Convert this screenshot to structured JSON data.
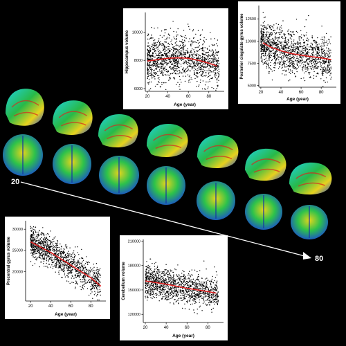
{
  "age_axis": {
    "start_label": "20",
    "end_label": "80"
  },
  "chart_data": [
    {
      "type": "scatter",
      "id": "hippocampus",
      "xlabel": "Age (year)",
      "ylabel": "Hippocampus volume",
      "xlim": [
        18,
        95
      ],
      "ylim": [
        5800,
        11400
      ],
      "xticks": [
        20,
        40,
        60,
        80
      ],
      "yticks": [
        6000,
        8000,
        10000
      ],
      "point_color": "#000000",
      "fit_color": "#e02020",
      "fit": {
        "x": [
          20,
          30,
          40,
          50,
          60,
          70,
          80,
          88
        ],
        "y": [
          7950,
          8050,
          8150,
          8180,
          8150,
          8000,
          7800,
          7600
        ]
      },
      "cloud": {
        "center": 8050,
        "spread": 1350,
        "n": 1400
      }
    },
    {
      "type": "scatter",
      "id": "posterior-cingulate",
      "xlabel": "Age (year)",
      "ylabel": "Posterior cingulate gyrus volume",
      "xlim": [
        18,
        95
      ],
      "ylim": [
        4800,
        14000
      ],
      "xticks": [
        20,
        40,
        60,
        80
      ],
      "yticks": [
        5000,
        7500,
        10000,
        12500
      ],
      "point_color": "#000000",
      "fit_color": "#e02020",
      "fit": {
        "x": [
          22,
          30,
          40,
          50,
          60,
          70,
          80,
          90
        ],
        "y": [
          9800,
          9300,
          8900,
          8600,
          8400,
          8250,
          8100,
          7900
        ]
      },
      "cloud": {
        "center": 8700,
        "spread": 2000,
        "n": 1400
      }
    },
    {
      "type": "scatter",
      "id": "precentral",
      "xlabel": "Age (year)",
      "ylabel": "Precentral gyrus volume",
      "xlim": [
        15,
        95
      ],
      "ylim": [
        13000,
        32000
      ],
      "xticks": [
        20,
        40,
        60,
        80
      ],
      "yticks": [
        20000,
        25000,
        30000
      ],
      "point_color": "#000000",
      "fit_color": "#e02020",
      "fit": {
        "x": [
          20,
          40,
          60,
          80,
          90
        ],
        "y": [
          27000,
          24500,
          21500,
          18500,
          16500
        ]
      },
      "cloud": {
        "center": 22000,
        "spread": 3000,
        "n": 1300
      }
    },
    {
      "type": "scatter",
      "id": "cerebellum",
      "xlabel": "Age (year)",
      "ylabel": "Cerebellum volume",
      "xlim": [
        18,
        95
      ],
      "ylim": [
        110000,
        212000
      ],
      "xticks": [
        20,
        40,
        60,
        80
      ],
      "yticks": [
        120000,
        150000,
        180000,
        210000
      ],
      "point_color": "#000000",
      "fit_color": "#e02020",
      "fit": {
        "x": [
          20,
          40,
          60,
          80,
          88
        ],
        "y": [
          161000,
          157000,
          152000,
          148000,
          146000
        ]
      },
      "cloud": {
        "center": 153000,
        "spread": 16000,
        "n": 1300
      }
    }
  ]
}
